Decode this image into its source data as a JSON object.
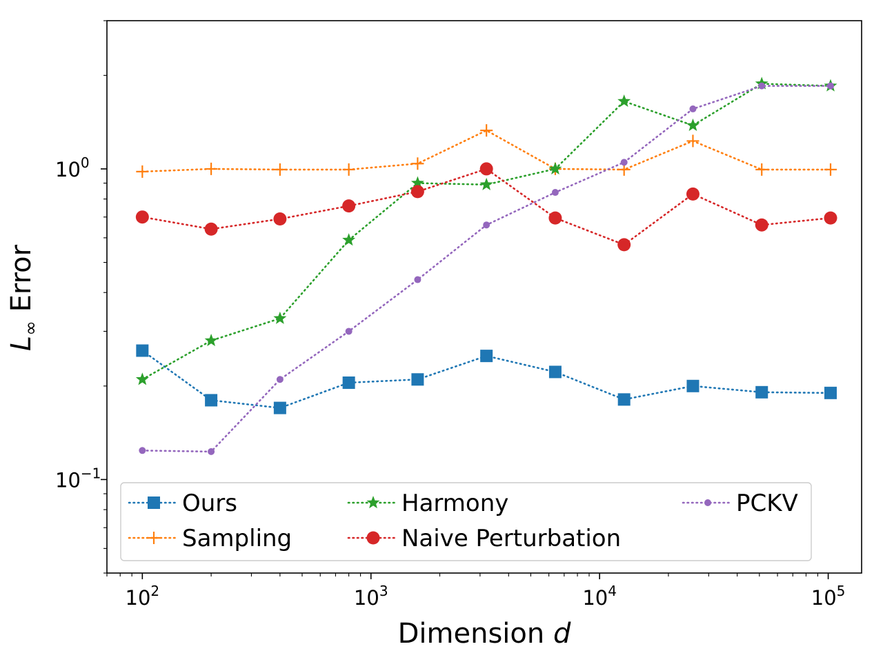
{
  "chart_data": {
    "type": "line",
    "title": "",
    "xlabel": "Dimension",
    "xlabel_var": "d",
    "ylabel": "Error",
    "ylabel_var": "L",
    "ylabel_sub": "∞",
    "xscale": "log",
    "yscale": "log",
    "xlim": [
      70,
      140000
    ],
    "ylim": [
      0.05,
      3.0
    ],
    "x_ticks": [
      {
        "value": 100,
        "base": "10",
        "exp": "2"
      },
      {
        "value": 1000,
        "base": "10",
        "exp": "3"
      },
      {
        "value": 10000,
        "base": "10",
        "exp": "4"
      },
      {
        "value": 100000,
        "base": "10",
        "exp": "5"
      }
    ],
    "y_ticks": [
      {
        "value": 0.1,
        "base": "10",
        "exp": "−1"
      },
      {
        "value": 1,
        "base": "10",
        "exp": "0"
      }
    ],
    "grid": false,
    "legend_position": "lower center",
    "x": [
      100,
      200,
      400,
      800,
      1600,
      3200,
      6400,
      12800,
      25600,
      51200,
      102400
    ],
    "series": [
      {
        "name": "Ours",
        "color": "#1f77b4",
        "marker": "square",
        "values": [
          0.26,
          0.18,
          0.17,
          0.205,
          0.21,
          0.25,
          0.222,
          0.181,
          0.2,
          0.191,
          0.19
        ]
      },
      {
        "name": "Sampling",
        "color": "#ff7f0e",
        "marker": "plus",
        "values": [
          0.98,
          1.0,
          0.995,
          0.995,
          1.04,
          1.33,
          1.0,
          0.995,
          1.23,
          0.995,
          0.995
        ]
      },
      {
        "name": "Harmony",
        "color": "#2ca02c",
        "marker": "star",
        "values": [
          0.21,
          0.28,
          0.33,
          0.59,
          0.9,
          0.89,
          1.0,
          1.65,
          1.38,
          1.88,
          1.85
        ]
      },
      {
        "name": "Naive Perturbation",
        "color": "#d62728",
        "marker": "circle",
        "values": [
          0.7,
          0.64,
          0.69,
          0.76,
          0.845,
          1.0,
          0.695,
          0.57,
          0.83,
          0.66,
          0.695
        ]
      },
      {
        "name": "PCKV",
        "color": "#9467bd",
        "marker": "dot",
        "values": [
          0.124,
          0.123,
          0.21,
          0.3,
          0.44,
          0.66,
          0.84,
          1.05,
          1.56,
          1.85,
          1.85
        ]
      }
    ]
  }
}
